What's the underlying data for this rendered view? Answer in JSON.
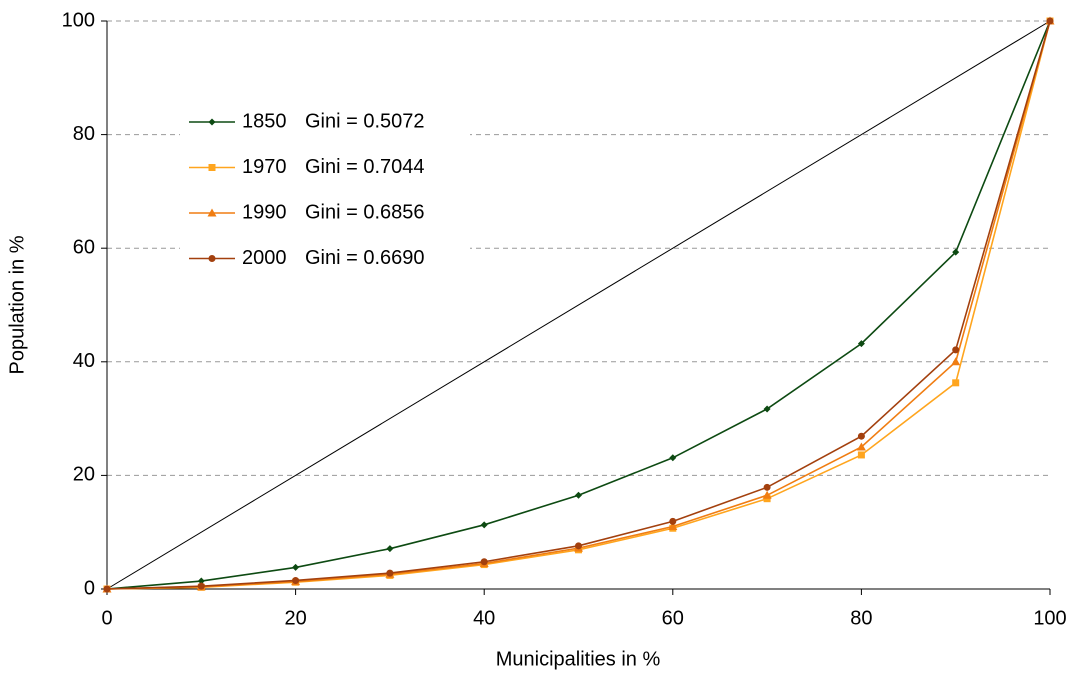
{
  "chart_data": {
    "type": "line",
    "x_label": "Municipalities in %",
    "y_label": "Population  in %",
    "x": [
      0,
      10,
      20,
      30,
      40,
      50,
      60,
      70,
      80,
      90,
      100
    ],
    "series": [
      {
        "name": "1850",
        "annotation": "Gini = 0.5072",
        "color": "#0d4a12",
        "marker": "diamond",
        "values": [
          0,
          1.4,
          3.8,
          7.1,
          11.3,
          16.5,
          23.1,
          31.7,
          43.2,
          59.3,
          100
        ]
      },
      {
        "name": "1970",
        "annotation": "Gini = 0.7044",
        "color": "#ffa51e",
        "marker": "square",
        "values": [
          0,
          0.3,
          1.2,
          2.4,
          4.3,
          6.9,
          10.7,
          15.9,
          23.6,
          36.3,
          100
        ]
      },
      {
        "name": "1990",
        "annotation": "Gini = 0.6856",
        "color": "#f07d12",
        "marker": "triangle",
        "values": [
          0,
          0.4,
          1.3,
          2.6,
          4.5,
          7.2,
          11.0,
          16.5,
          25.0,
          40.0,
          100
        ]
      },
      {
        "name": "2000",
        "annotation": "Gini = 0.6690",
        "color": "#a3400e",
        "marker": "circle",
        "values": [
          0,
          0.5,
          1.5,
          2.8,
          4.8,
          7.6,
          11.9,
          17.9,
          26.9,
          42.1,
          100
        ]
      }
    ],
    "equality_line": {
      "x": [
        0,
        100
      ],
      "values": [
        0,
        100
      ],
      "color": "#000000"
    },
    "xlim": [
      0,
      100
    ],
    "ylim": [
      0,
      100
    ],
    "xticks": [
      0,
      20,
      40,
      60,
      80,
      100
    ],
    "yticks": [
      0,
      20,
      40,
      60,
      80,
      100
    ],
    "grid": true
  }
}
